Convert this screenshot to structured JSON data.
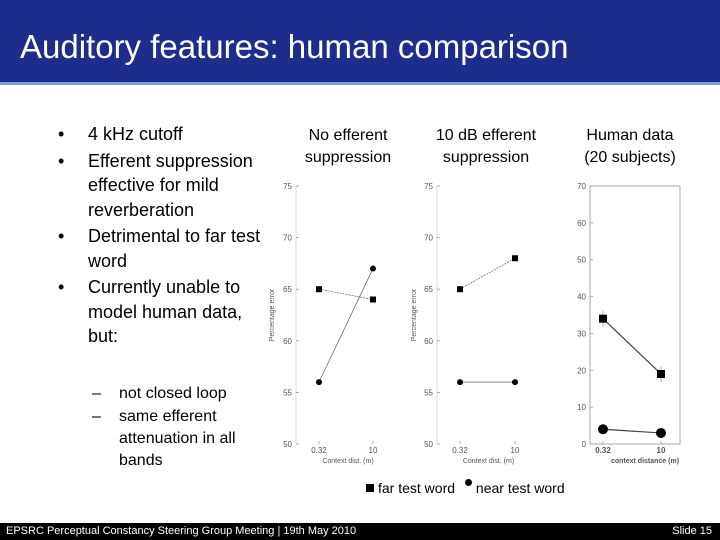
{
  "slide": {
    "title": "Auditory features: human comparison",
    "bullets": [
      "4 kHz cutoff",
      "Efferent suppression effective for mild reverberation",
      "Detrimental to far test word",
      "Currently unable to model human data, but:"
    ],
    "sub_bullets": [
      "not closed loop",
      "same efferent attenuation in all bands"
    ],
    "bullet_glyph": "•",
    "sub_bullet_glyph": "–"
  },
  "panels": [
    {
      "heading_line1": "No efferent",
      "heading_line2": "suppression",
      "ylabel": "Percentage error",
      "xlabel": "Context dist. (m)",
      "yticks": [
        "50",
        "55",
        "60",
        "65",
        "70",
        "75"
      ],
      "xticks": [
        "0.32",
        "10"
      ]
    },
    {
      "heading_line1": "10 dB efferent",
      "heading_line2": "suppression",
      "ylabel": "Percentage error",
      "xlabel": "Context dist. (m)",
      "yticks": [
        "50",
        "55",
        "60",
        "65",
        "70",
        "75"
      ],
      "xticks": [
        "0.32",
        "10"
      ]
    },
    {
      "heading_line1": "Human data",
      "heading_line2": "(20 subjects)",
      "ylabel": "",
      "xlabel": "context distance (m)",
      "yticks": [
        "0",
        "10",
        "20",
        "30",
        "40",
        "50",
        "60",
        "70"
      ],
      "xticks": [
        "0.32",
        "10"
      ]
    }
  ],
  "legend": {
    "far_label": "far test word",
    "near_label": "near test word"
  },
  "footer": {
    "left": "EPSRC Perceptual Constancy Steering Group Meeting | 19th May 2010",
    "right": "Slide 15"
  },
  "colors": {
    "title_bar": "#1c2d8c",
    "title_text": "#ffffff",
    "footer_bar": "#000000"
  },
  "chart_data": [
    {
      "type": "line",
      "title": "No efferent suppression",
      "xlabel": "Context dist. (m)",
      "ylabel": "Percentage error",
      "categories": [
        "0.32",
        "10"
      ],
      "ylim": [
        50,
        75
      ],
      "series": [
        {
          "name": "far test word",
          "marker": "square",
          "values": [
            65,
            64
          ]
        },
        {
          "name": "near test word",
          "marker": "circle",
          "values": [
            56,
            67
          ]
        }
      ]
    },
    {
      "type": "line",
      "title": "10 dB efferent suppression",
      "xlabel": "Context dist. (m)",
      "ylabel": "Percentage error",
      "categories": [
        "0.32",
        "10"
      ],
      "ylim": [
        50,
        75
      ],
      "series": [
        {
          "name": "far test word",
          "marker": "square",
          "values": [
            65,
            68
          ]
        },
        {
          "name": "near test word",
          "marker": "circle",
          "values": [
            56,
            56
          ]
        }
      ]
    },
    {
      "type": "line",
      "title": "Human data (20 subjects)",
      "xlabel": "context distance (m)",
      "ylabel": "",
      "categories": [
        "0.32",
        "10"
      ],
      "ylim": [
        0,
        70
      ],
      "series": [
        {
          "name": "far test word",
          "marker": "square",
          "values": [
            34,
            19
          ]
        },
        {
          "name": "near test word",
          "marker": "circle",
          "values": [
            4,
            3
          ]
        }
      ]
    }
  ]
}
